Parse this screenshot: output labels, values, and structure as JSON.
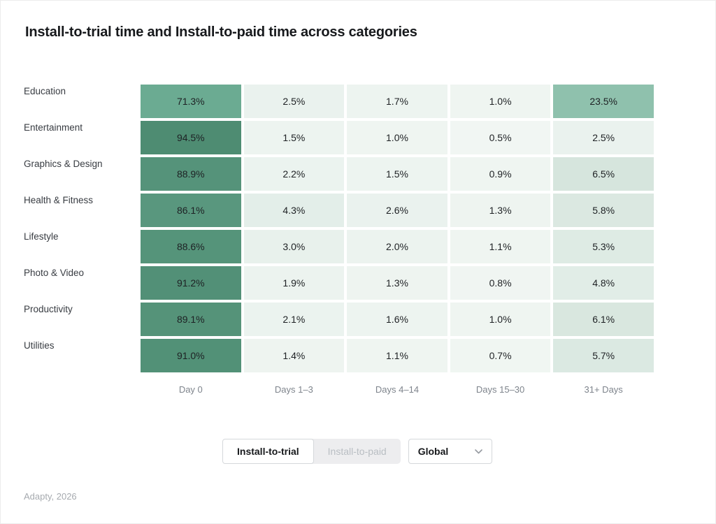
{
  "header": {
    "title": "Install-to-trial time and Install-to-paid time across categories"
  },
  "chart_data": {
    "type": "heatmap",
    "title": "Install-to-trial time and Install-to-paid time across categories",
    "unit": "%",
    "categories": [
      "Education",
      "Entertainment",
      "Graphics & Design",
      "Health & Fitness",
      "Lifestyle",
      "Photo & Video",
      "Productivity",
      "Utilities"
    ],
    "columns": [
      "Day 0",
      "Days 1–3",
      "Days 4–14",
      "Days 15–30",
      "31+ Days"
    ],
    "series": [
      {
        "name": "Education",
        "values": [
          71.3,
          2.5,
          1.7,
          1.0,
          23.5
        ]
      },
      {
        "name": "Entertainment",
        "values": [
          94.5,
          1.5,
          1.0,
          0.5,
          2.5
        ]
      },
      {
        "name": "Graphics & Design",
        "values": [
          88.9,
          2.2,
          1.5,
          0.9,
          6.5
        ]
      },
      {
        "name": "Health & Fitness",
        "values": [
          86.1,
          4.3,
          2.6,
          1.3,
          5.8
        ]
      },
      {
        "name": "Lifestyle",
        "values": [
          88.6,
          3.0,
          2.0,
          1.1,
          5.3
        ]
      },
      {
        "name": "Photo & Video",
        "values": [
          91.2,
          1.9,
          1.3,
          0.8,
          4.8
        ]
      },
      {
        "name": "Productivity",
        "values": [
          89.1,
          2.1,
          1.6,
          1.0,
          6.1
        ]
      },
      {
        "name": "Utilities",
        "values": [
          91.0,
          1.4,
          1.1,
          0.7,
          5.7
        ]
      }
    ],
    "value_range": [
      0,
      100
    ],
    "grid": "off",
    "legend_position": "none",
    "color_scale": {
      "stops": [
        [
          0,
          "#f2f7f4"
        ],
        [
          1.0,
          "#eff5f1"
        ],
        [
          2.5,
          "#eaf2ee"
        ],
        [
          4.8,
          "#e1ede7"
        ],
        [
          6.5,
          "#d6e5dd"
        ],
        [
          23.5,
          "#8fc1ad"
        ],
        [
          71.3,
          "#6bab92"
        ],
        [
          94.5,
          "#4e8c72"
        ],
        [
          100,
          "#4a8a6f"
        ]
      ]
    }
  },
  "controls": {
    "view_toggle": {
      "options": [
        {
          "label": "Install-to-trial",
          "active": true
        },
        {
          "label": "Install-to-paid",
          "active": false
        }
      ]
    },
    "region_dropdown": {
      "value": "Global",
      "icon": "chevron-down"
    }
  },
  "footer": {
    "source": "Adapty, 2026"
  },
  "colors": {
    "title_text": "#17191c",
    "cell_text": "#1e2124",
    "row_label_text": "#383c42",
    "axis_label_text": "#7e848c",
    "toggle_inactive_text": "#b9bec3",
    "toggle_group_bg": "#ededef",
    "control_border": "#d5d8db"
  }
}
